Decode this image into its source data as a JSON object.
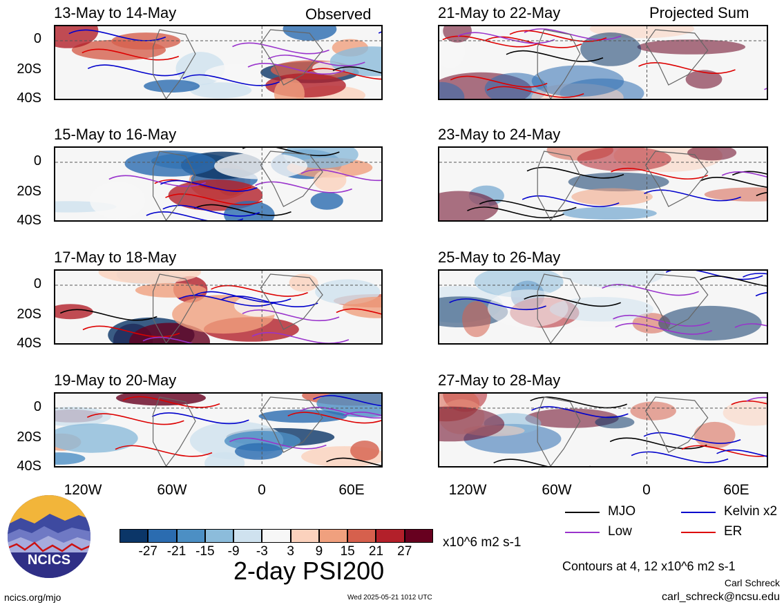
{
  "panels": [
    {
      "title": "13-May to 14-May",
      "label": "Observed"
    },
    {
      "title": "15-May to 16-May",
      "label": ""
    },
    {
      "title": "17-May to 18-May",
      "label": ""
    },
    {
      "title": "19-May to 20-May",
      "label": ""
    },
    {
      "title": "21-May to 22-May",
      "label": "Projected Sum"
    },
    {
      "title": "23-May to 24-May",
      "label": ""
    },
    {
      "title": "25-May to 26-May",
      "label": ""
    },
    {
      "title": "27-May to 28-May",
      "label": ""
    }
  ],
  "y_ticks": [
    "0",
    "20S",
    "40S"
  ],
  "x_ticks": [
    "120W",
    "60W",
    "0",
    "60E"
  ],
  "legend": [
    {
      "label": "MJO",
      "color": "#000000"
    },
    {
      "label": "Kelvin x2",
      "color": "#0000cc"
    },
    {
      "label": "Low",
      "color": "#9933cc"
    },
    {
      "label": "ER",
      "color": "#dd0000"
    }
  ],
  "colorbar": {
    "ticks": [
      "-27",
      "-21",
      "-15",
      "-9",
      "-3",
      "3",
      "9",
      "15",
      "21",
      "27"
    ],
    "colors": [
      "#0b3668",
      "#2b6cb0",
      "#4c8fc4",
      "#8cbcdb",
      "#cfe2ef",
      "#f7f7f7",
      "#fbd2bd",
      "#f0a07e",
      "#d6604d",
      "#b3202a",
      "#67001f"
    ],
    "units": "x10^6 m2 s-1"
  },
  "main_title": "2-day PSI200",
  "contours_note": "Contours at 4, 12 x10^6 m2 s-1",
  "author": "Carl Schreck",
  "email": "carl_schreck@ncsu.edu",
  "site": "ncics.org/mjo",
  "timestamp": "Wed 2025-05-21 1012 UTC",
  "logo_text": "NCICS"
}
